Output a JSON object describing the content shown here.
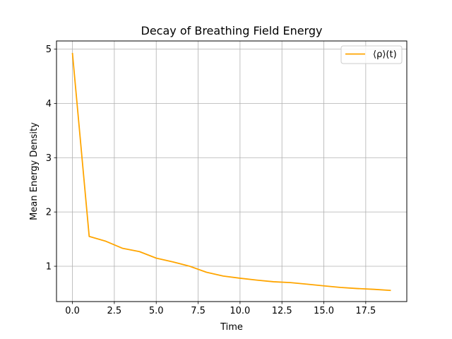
{
  "chart_data": {
    "type": "line",
    "title": "Decay of Breathing Field Energy",
    "xlabel": "Time",
    "ylabel": "Mean Energy Density",
    "xlim": [
      -0.95,
      19.95
    ],
    "ylim": [
      0.35,
      5.15
    ],
    "xticks": [
      0.0,
      2.5,
      5.0,
      7.5,
      10.0,
      12.5,
      15.0,
      17.5
    ],
    "xtick_labels": [
      "0.0",
      "2.5",
      "5.0",
      "7.5",
      "10.0",
      "12.5",
      "15.0",
      "17.5"
    ],
    "yticks": [
      1,
      2,
      3,
      4,
      5
    ],
    "ytick_labels": [
      "1",
      "2",
      "3",
      "4",
      "5"
    ],
    "grid": true,
    "legend_position": "top-right",
    "series": [
      {
        "name": "⟨ρ⟩(t)",
        "color": "#ffa500",
        "x": [
          0,
          1,
          2,
          3,
          4,
          5,
          6,
          7,
          8,
          9,
          10,
          11,
          12,
          13,
          14,
          15,
          16,
          17,
          18,
          19
        ],
        "y": [
          4.93,
          1.55,
          1.46,
          1.33,
          1.27,
          1.15,
          1.08,
          1.0,
          0.89,
          0.82,
          0.78,
          0.745,
          0.715,
          0.7,
          0.67,
          0.64,
          0.61,
          0.59,
          0.575,
          0.555
        ]
      }
    ]
  }
}
